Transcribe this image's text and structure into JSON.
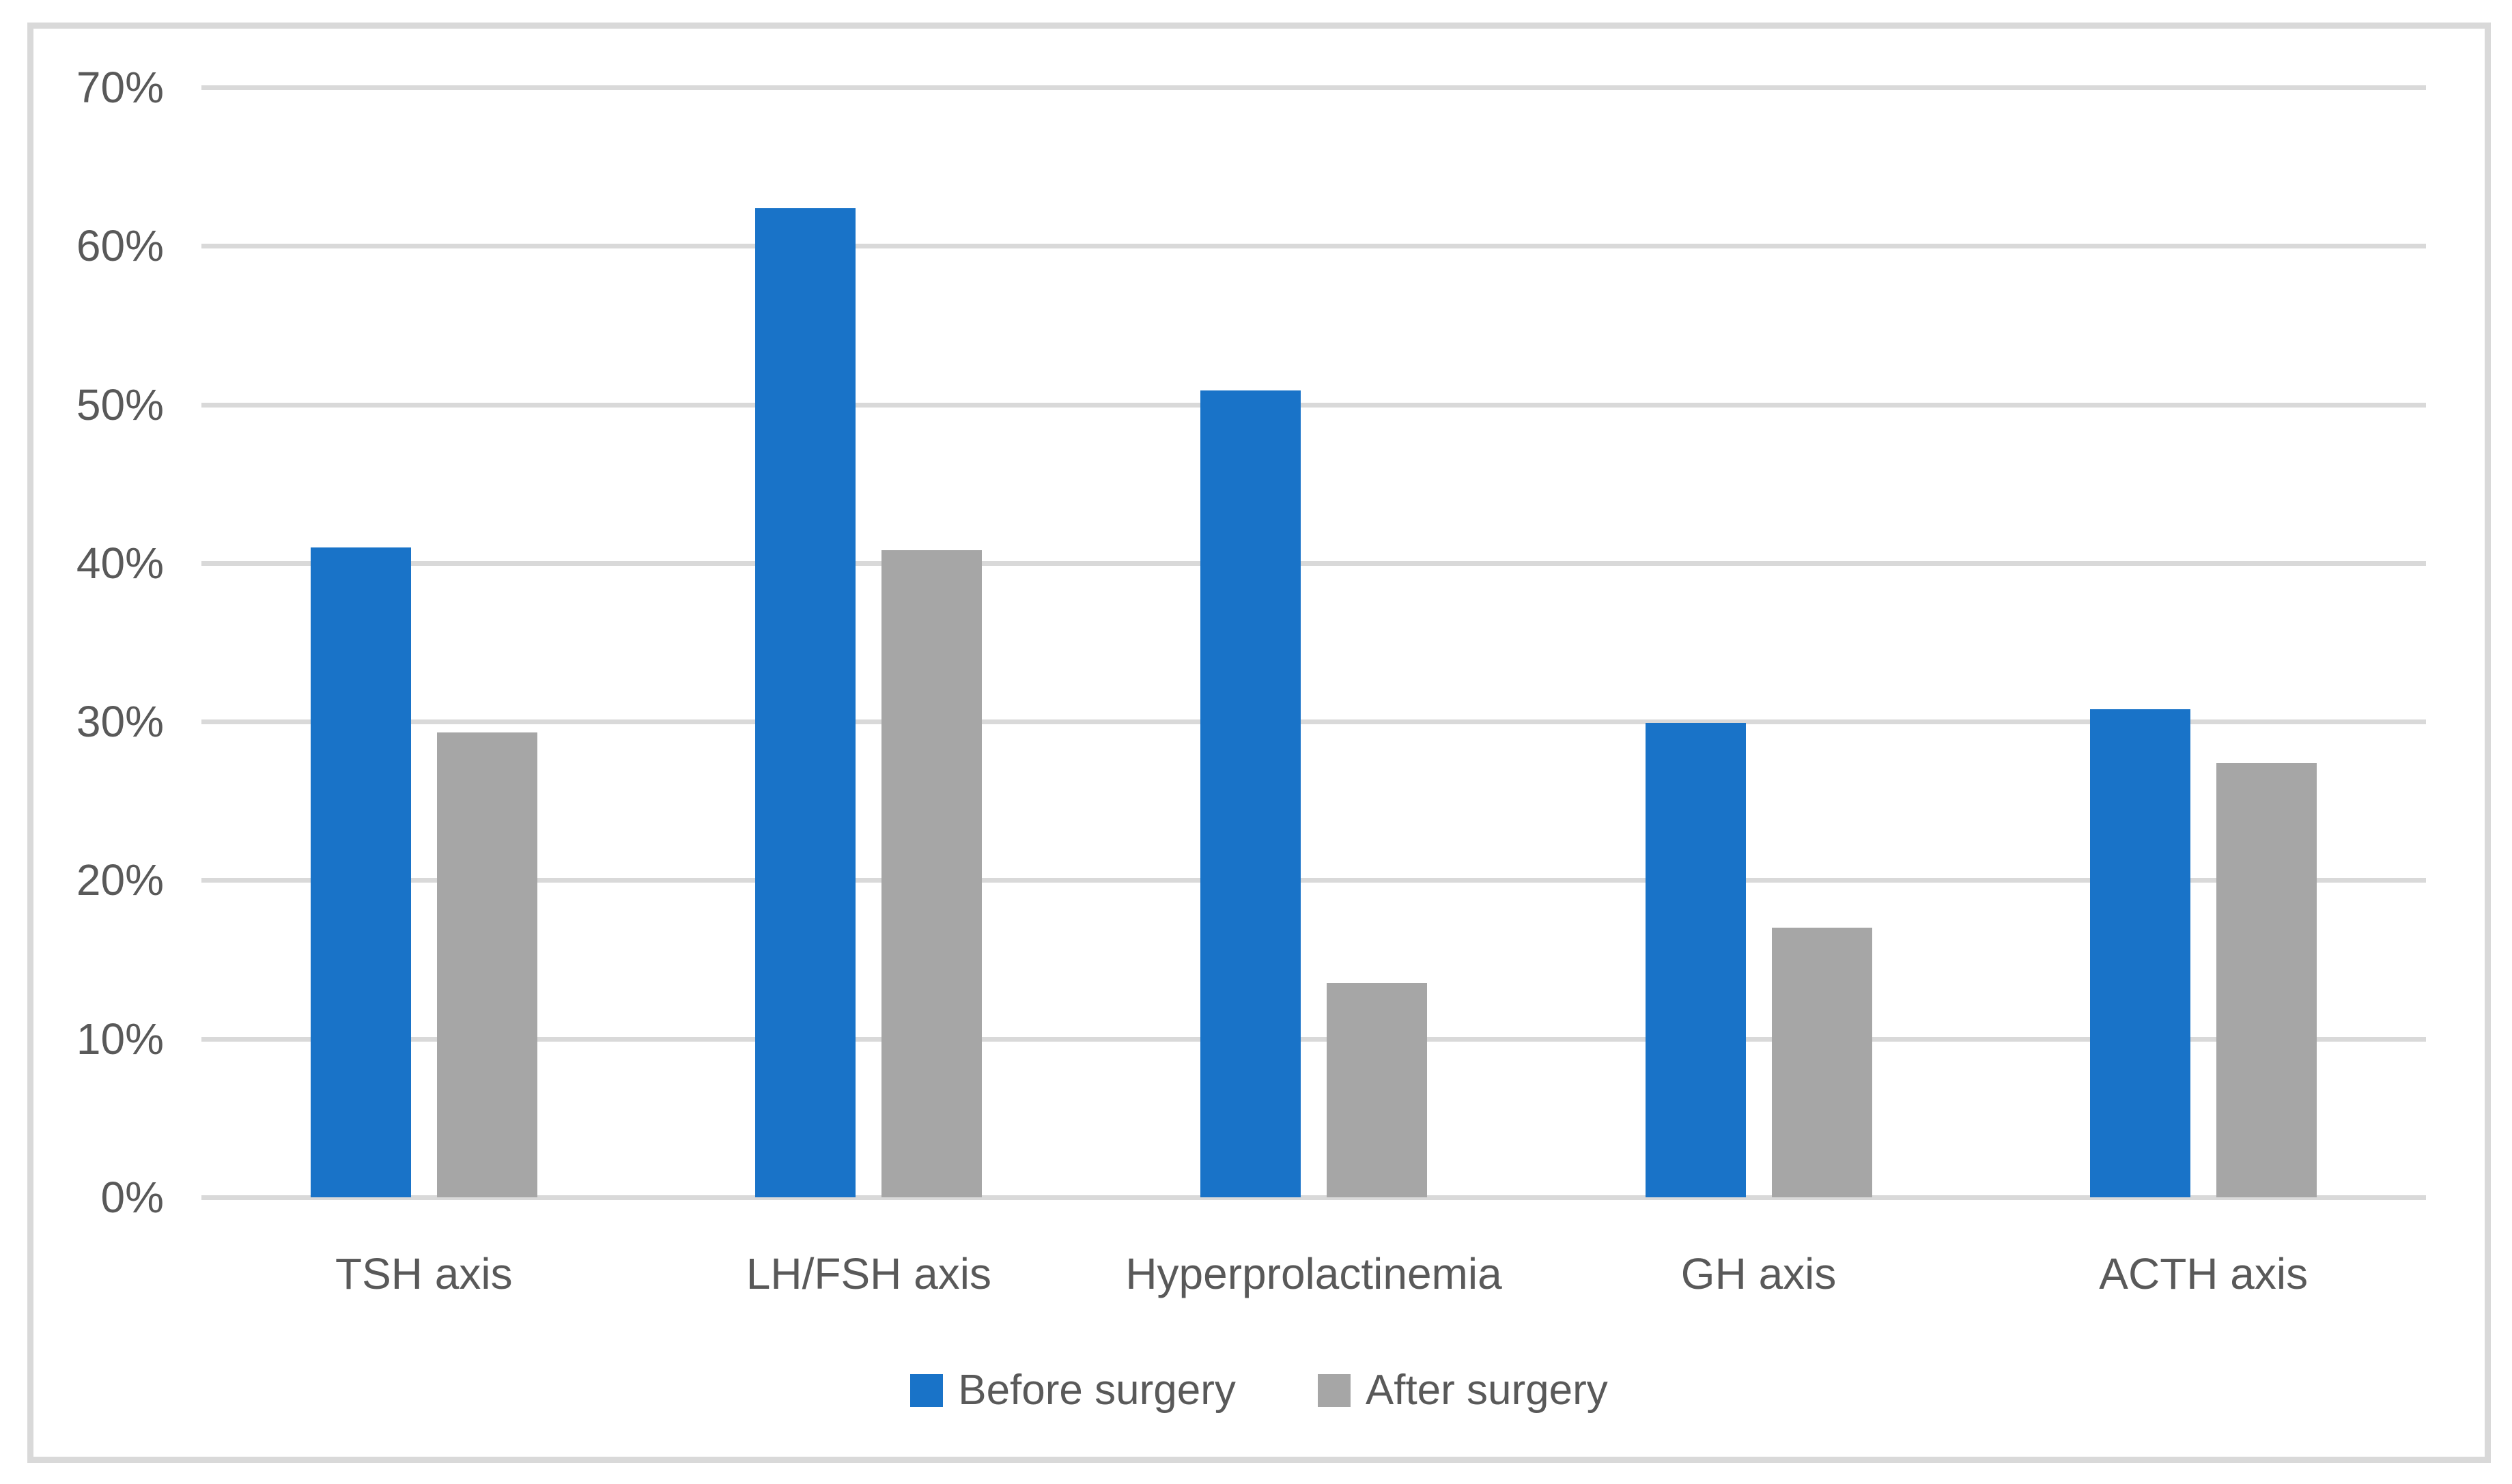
{
  "colors": {
    "series_before": "#1973C8",
    "series_after": "#A6A6A6",
    "gridline": "#D9D9D9",
    "frame_border": "#D9D9D9",
    "axis_text": "#595959",
    "background": "#FFFFFF"
  },
  "legend": {
    "items": [
      {
        "label": "Before surgery",
        "color": "#1973C8"
      },
      {
        "label": "After surgery",
        "color": "#A6A6A6"
      }
    ],
    "position": "bottom"
  },
  "chart_data": {
    "type": "bar",
    "title": "",
    "xlabel": "",
    "ylabel": "",
    "categories": [
      "TSH axis",
      "LH/FSH axis",
      "Hyperprolactinemia",
      "GH axis",
      "ACTH axis"
    ],
    "series": [
      {
        "name": "Before surgery",
        "color": "#1973C8",
        "values": [
          41.0,
          62.4,
          50.9,
          29.9,
          30.8
        ]
      },
      {
        "name": "After surgery",
        "color": "#A6A6A6",
        "values": [
          29.3,
          40.8,
          13.5,
          17.0,
          27.4
        ]
      }
    ],
    "y_ticks": [
      "0%",
      "10%",
      "20%",
      "30%",
      "40%",
      "50%",
      "60%",
      "70%"
    ],
    "y_tick_values": [
      0,
      10,
      20,
      30,
      40,
      50,
      60,
      70
    ],
    "ylim": [
      0,
      70
    ],
    "grid": "horizontal",
    "legend_position": "bottom"
  }
}
